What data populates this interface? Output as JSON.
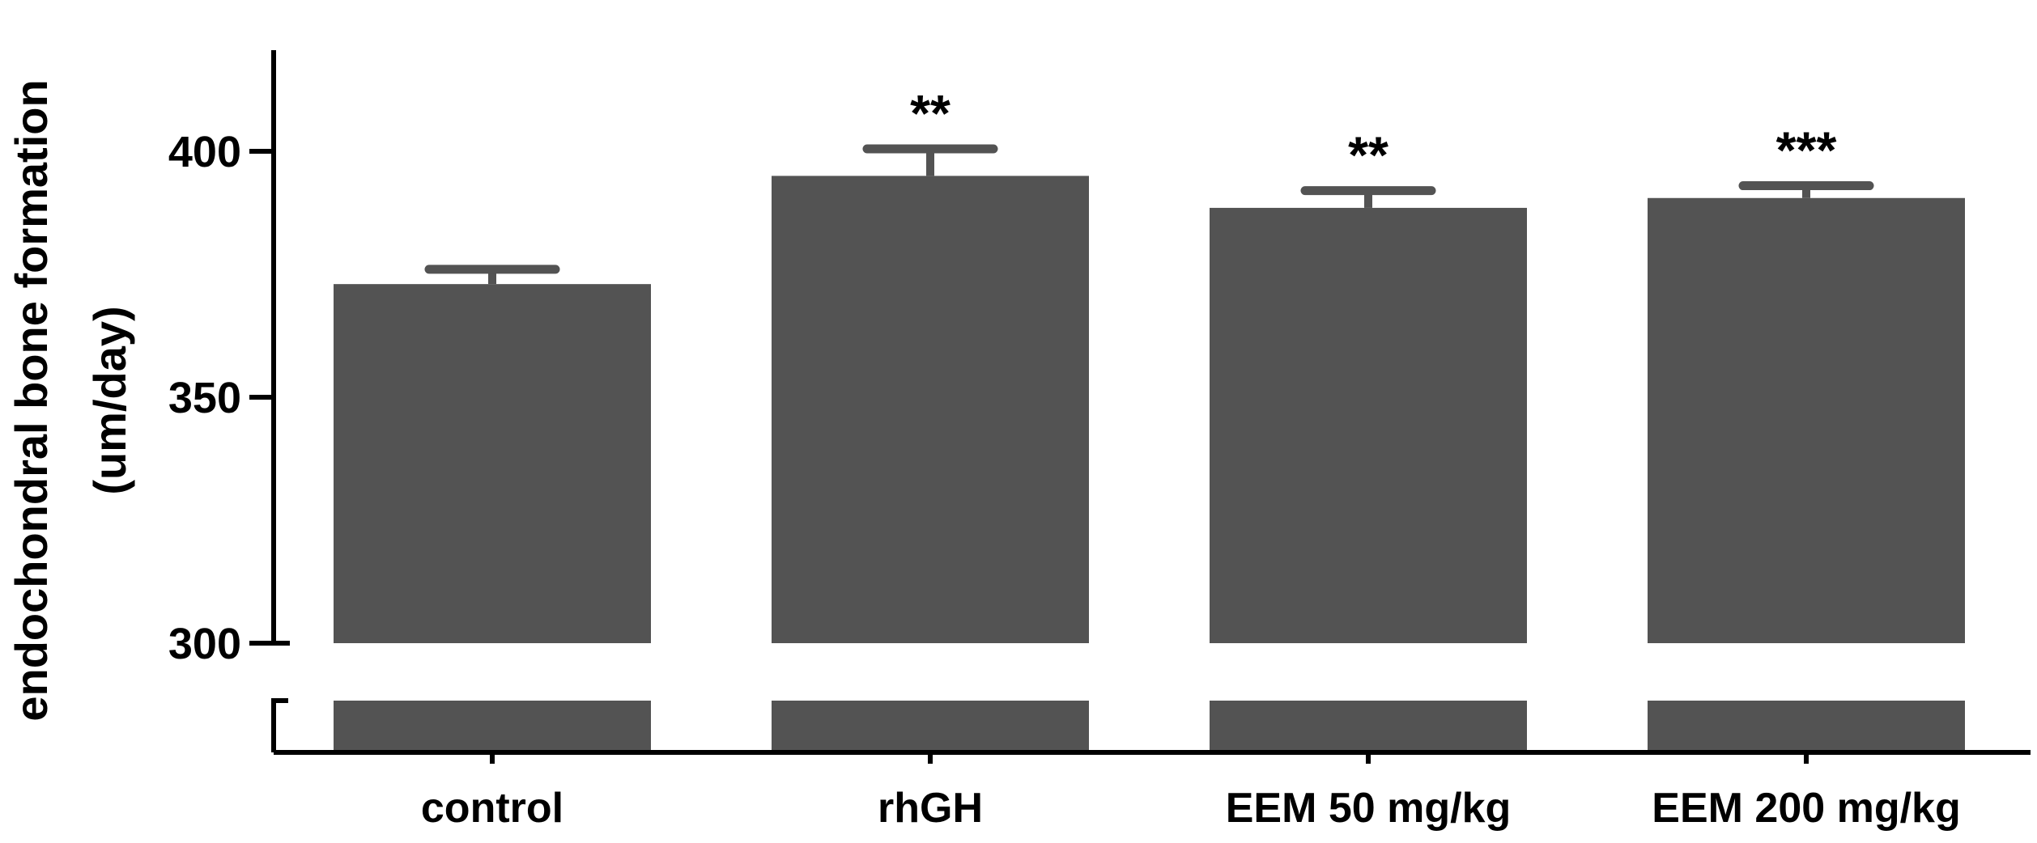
{
  "chart_data": {
    "type": "bar",
    "title": "",
    "xlabel": "",
    "ylabel_line1": "endochondral bone formation",
    "ylabel_line2": "(um/day)",
    "categories": [
      "control",
      "rhGH",
      "EEM 50 mg/kg",
      "EEM 200 mg/kg"
    ],
    "values": [
      373,
      395,
      388.5,
      390.5
    ],
    "errors": [
      3,
      5.5,
      3.5,
      2.5
    ],
    "significance": [
      "",
      "**",
      "**",
      "***"
    ],
    "ylim": [
      300,
      420
    ],
    "yticks": [
      300,
      350,
      400
    ],
    "axis_break": true,
    "grid": false,
    "legend": "none",
    "bar_color": "#535353"
  }
}
